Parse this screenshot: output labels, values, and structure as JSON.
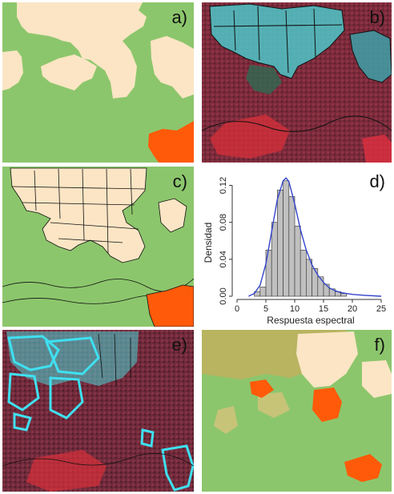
{
  "panels": {
    "a": {
      "label": "a)"
    },
    "b": {
      "label": "b)"
    },
    "c": {
      "label": "c)"
    },
    "d": {
      "label": "d)"
    },
    "e": {
      "label": "e)"
    },
    "f": {
      "label": "f)"
    }
  },
  "colors": {
    "green": "#8cc66c",
    "cream": "#fbe5c4",
    "orange": "#ff5a0a",
    "cyan": "#3fe0f0",
    "histogram_fill": "#c0c0c0",
    "density_line": "#3344cc"
  },
  "chart_data": {
    "type": "bar",
    "xlabel": "Respuesta espectral",
    "ylabel": "Densidad",
    "xlim": [
      0,
      25
    ],
    "ylim": [
      0,
      0.13
    ],
    "x_ticks": [
      "0",
      "5",
      "10",
      "15",
      "20",
      "25"
    ],
    "y_ticks": [
      "0.00",
      "0.04",
      "0.08",
      "0.12"
    ],
    "bins": [
      {
        "x0": 3,
        "x1": 4,
        "value": 0.005
      },
      {
        "x0": 4,
        "x1": 5,
        "value": 0.01
      },
      {
        "x0": 5,
        "x1": 6,
        "value": 0.05
      },
      {
        "x0": 6,
        "x1": 7,
        "value": 0.08
      },
      {
        "x0": 7,
        "x1": 8,
        "value": 0.115
      },
      {
        "x0": 8,
        "x1": 9,
        "value": 0.125
      },
      {
        "x0": 9,
        "x1": 10,
        "value": 0.108
      },
      {
        "x0": 10,
        "x1": 11,
        "value": 0.076
      },
      {
        "x0": 11,
        "x1": 12,
        "value": 0.05
      },
      {
        "x0": 12,
        "x1": 13,
        "value": 0.04
      },
      {
        "x0": 13,
        "x1": 14,
        "value": 0.03
      },
      {
        "x0": 14,
        "x1": 15,
        "value": 0.021
      },
      {
        "x0": 15,
        "x1": 16,
        "value": 0.013
      },
      {
        "x0": 16,
        "x1": 17,
        "value": 0.008
      },
      {
        "x0": 17,
        "x1": 18,
        "value": 0.005
      },
      {
        "x0": 18,
        "x1": 19,
        "value": 0.003
      }
    ],
    "density_curve": {
      "x": [
        2,
        3,
        4,
        5,
        6,
        7,
        8,
        8.5,
        9,
        10,
        11,
        12,
        13,
        14,
        15,
        16,
        17,
        18,
        20,
        22,
        25
      ],
      "y": [
        0.0,
        0.003,
        0.012,
        0.035,
        0.07,
        0.105,
        0.125,
        0.128,
        0.124,
        0.1,
        0.072,
        0.05,
        0.034,
        0.023,
        0.015,
        0.009,
        0.006,
        0.004,
        0.002,
        0.001,
        0.0
      ]
    }
  }
}
